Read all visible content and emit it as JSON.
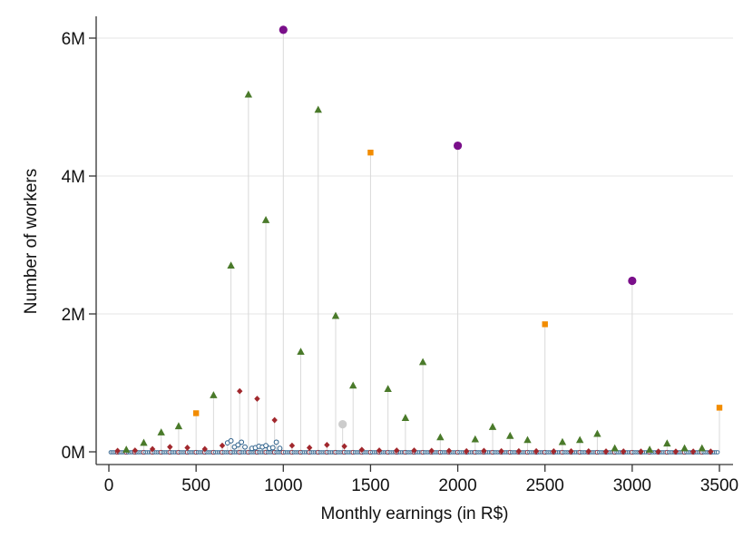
{
  "chart_data": {
    "type": "scatter",
    "xlabel": "Monthly earnings (in R$)",
    "ylabel": "Number of workers",
    "xlim": [
      0,
      3500
    ],
    "ylim": [
      0,
      6000000
    ],
    "x_ticks": [
      0,
      500,
      1000,
      1500,
      2000,
      2500,
      3000,
      3500
    ],
    "x_tick_labels": [
      "0",
      "500",
      "1000",
      "1500",
      "2000",
      "2500",
      "3000",
      "3500"
    ],
    "y_ticks": [
      0,
      2000000,
      4000000,
      6000000
    ],
    "y_tick_labels": [
      "0M",
      "2M",
      "4M",
      "6M"
    ],
    "grid": true,
    "drop_lines": true,
    "series": [
      {
        "marker": "circle",
        "color": "#7a0f8a",
        "x": [
          1000,
          2000,
          3000
        ],
        "y": [
          6120000,
          4440000,
          2480000
        ]
      },
      {
        "marker": "square",
        "color": "#f28c00",
        "x": [
          500,
          1500,
          2500,
          3500
        ],
        "y": [
          560000,
          4340000,
          1850000,
          640000
        ]
      },
      {
        "marker": "triangle",
        "color": "#4a7a2a",
        "x": [
          100,
          200,
          300,
          400,
          600,
          700,
          800,
          900,
          1100,
          1200,
          1300,
          1400,
          1600,
          1700,
          1800,
          1900,
          2100,
          2200,
          2300,
          2400,
          2600,
          2700,
          2800,
          2900,
          3100,
          3200,
          3300,
          3400
        ],
        "y": [
          30000,
          130000,
          280000,
          370000,
          820000,
          2700000,
          5180000,
          3360000,
          1450000,
          4960000,
          1970000,
          960000,
          910000,
          490000,
          1300000,
          210000,
          180000,
          360000,
          230000,
          170000,
          140000,
          170000,
          260000,
          50000,
          30000,
          120000,
          50000,
          50000
        ]
      },
      {
        "marker": "diamond",
        "color": "#a1282d",
        "x": [
          50,
          150,
          250,
          350,
          450,
          550,
          650,
          750,
          850,
          950,
          1050,
          1150,
          1250,
          1350,
          1450,
          1550,
          1650,
          1750,
          1850,
          1950,
          2050,
          2150,
          2250,
          2350,
          2450,
          2550,
          2650,
          2750,
          2850,
          2950,
          3050,
          3150,
          3250,
          3350,
          3450
        ],
        "y": [
          15000,
          20000,
          40000,
          70000,
          60000,
          40000,
          90000,
          880000,
          770000,
          460000,
          90000,
          60000,
          100000,
          80000,
          30000,
          20000,
          20000,
          20000,
          15000,
          15000,
          10000,
          15000,
          10000,
          10000,
          10000,
          8000,
          8000,
          8000,
          6000,
          6000,
          5000,
          5000,
          5000,
          5000,
          5000
        ]
      },
      {
        "marker": "circle-open",
        "color": "#2b5f8a",
        "x": [
          680,
          700,
          720,
          740,
          760,
          780,
          820,
          840,
          860,
          880,
          900,
          920,
          940,
          960,
          980
        ],
        "y": [
          130000,
          160000,
          70000,
          100000,
          140000,
          70000,
          50000,
          60000,
          80000,
          70000,
          90000,
          50000,
          60000,
          140000,
          50000
        ]
      },
      {
        "marker": "circle",
        "color": "#cccccc",
        "x": [
          1340
        ],
        "y": [
          400000
        ]
      }
    ],
    "background_points": "dense near-zero observations for every integer earning value from 0 to 3500"
  }
}
